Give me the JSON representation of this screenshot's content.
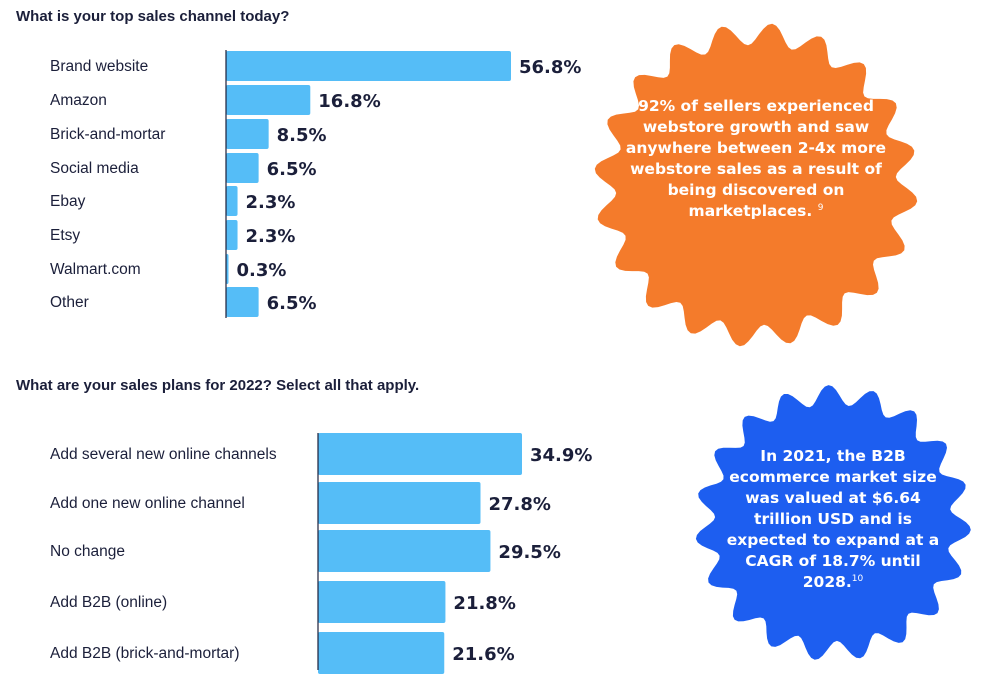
{
  "colors": {
    "bar": "#55bdf7",
    "axis": "#1b1f3a",
    "text": "#1b1f3a",
    "callout_orange": "#f47b2b",
    "callout_blue": "#1d5ef0"
  },
  "chart_data": [
    {
      "type": "bar",
      "orientation": "horizontal",
      "title": "What is your top sales channel today?",
      "categories": [
        "Brand website",
        "Amazon",
        "Brick-and-mortar",
        "Social media",
        "Ebay",
        "Etsy",
        "Walmart.com",
        "Other"
      ],
      "values": [
        56.8,
        16.8,
        8.5,
        6.5,
        2.3,
        2.3,
        0.3,
        6.5
      ],
      "value_labels": [
        "56.8%",
        "16.8%",
        "8.5%",
        "6.5%",
        "2.3%",
        "2.3%",
        "0.3%",
        "6.5%"
      ],
      "unit": "%",
      "grid": false
    },
    {
      "type": "bar",
      "orientation": "horizontal",
      "title": "What are your sales plans for 2022? Select all that apply.",
      "categories": [
        "Add several new online channels",
        "Add one new online channel",
        "No change",
        "Add B2B (online)",
        "Add B2B (brick-and-mortar)"
      ],
      "values": [
        34.9,
        27.8,
        29.5,
        21.8,
        21.6
      ],
      "value_labels": [
        "34.9%",
        "27.8%",
        "29.5%",
        "21.8%",
        "21.6%"
      ],
      "unit": "%",
      "grid": false
    }
  ],
  "callouts": [
    {
      "text": "92% of sellers experienced webstore growth and saw anywhere between 2-4x more webstore sales as a result of being discovered on marketplaces.",
      "footnote": "9"
    },
    {
      "text": "In 2021, the B2B ecommerce market size was valued at $6.64 trillion USD and is expected to expand at a CAGR of 18.7% until 2028.",
      "footnote": "10"
    }
  ]
}
